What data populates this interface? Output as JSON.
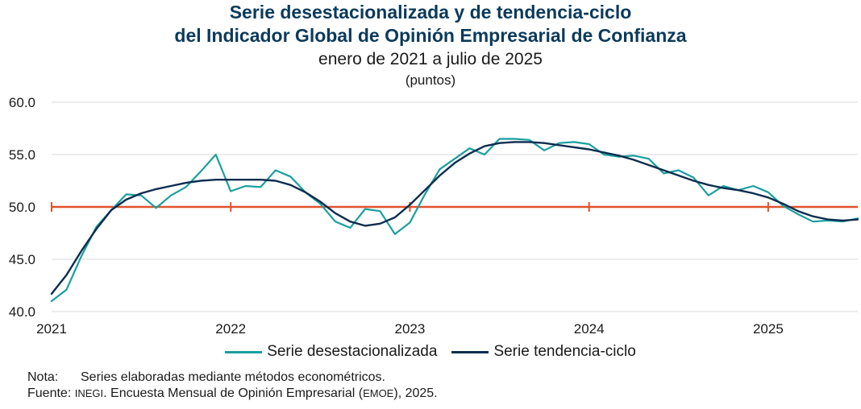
{
  "chart_data": {
    "type": "line",
    "title_line1": "Serie desestacionalizada y de tendencia-ciclo",
    "title_line2": "del Indicador Global de Opinión Empresarial de Confianza",
    "subtitle": "enero de 2021 a julio de 2025",
    "units": "(puntos)",
    "xlabel": "",
    "ylabel": "",
    "ylim": [
      40,
      60
    ],
    "yticks": [
      "40.0",
      "45.0",
      "50.0",
      "55.0",
      "60.0"
    ],
    "xticks": [
      "2021",
      "2022",
      "2023",
      "2024",
      "2025"
    ],
    "x_start": "2021-01",
    "x_end": "2025-07",
    "grid": true,
    "reference_line": {
      "value": 50,
      "color": "#e0532b"
    },
    "legend_position": "bottom",
    "series": [
      {
        "name": "Serie desestacionalizada",
        "color": "#1a9e9e",
        "values": [
          41.0,
          42.1,
          45.3,
          48.1,
          49.7,
          51.2,
          51.1,
          49.9,
          51.1,
          51.9,
          53.4,
          55.0,
          51.5,
          52.0,
          51.9,
          53.5,
          52.9,
          51.4,
          50.3,
          48.6,
          48.0,
          49.8,
          49.6,
          47.4,
          48.5,
          51.2,
          53.6,
          54.6,
          55.6,
          55.0,
          56.5,
          56.5,
          56.4,
          55.4,
          56.1,
          56.2,
          56.0,
          55.0,
          54.8,
          54.9,
          54.6,
          53.2,
          53.5,
          52.8,
          51.1,
          52.0,
          51.6,
          52.0,
          51.4,
          50.1,
          49.3,
          48.6,
          48.7,
          48.6,
          48.9
        ]
      },
      {
        "name": "Serie tendencia-ciclo",
        "color": "#0c2d4f",
        "values": [
          41.7,
          43.5,
          45.8,
          47.9,
          49.7,
          50.7,
          51.3,
          51.7,
          52.0,
          52.3,
          52.5,
          52.6,
          52.6,
          52.6,
          52.6,
          52.5,
          52.1,
          51.4,
          50.5,
          49.4,
          48.6,
          48.2,
          48.4,
          49.0,
          50.2,
          51.6,
          53.0,
          54.2,
          55.1,
          55.8,
          56.1,
          56.2,
          56.2,
          56.1,
          55.9,
          55.7,
          55.5,
          55.2,
          54.9,
          54.5,
          54.0,
          53.5,
          53.0,
          52.5,
          52.1,
          51.8,
          51.6,
          51.3,
          50.9,
          50.3,
          49.6,
          49.1,
          48.8,
          48.7,
          48.8
        ]
      }
    ]
  },
  "notes": {
    "nota_label": "Nota:",
    "nota_text": "Series elaboradas mediante métodos econométricos.",
    "fuente_label": "Fuente:",
    "fuente_org": "INEGI",
    "fuente_text_1": ". Encuesta Mensual de Opinión Empresarial (",
    "fuente_acronym": "EMOE",
    "fuente_text_2": "), 2025."
  }
}
